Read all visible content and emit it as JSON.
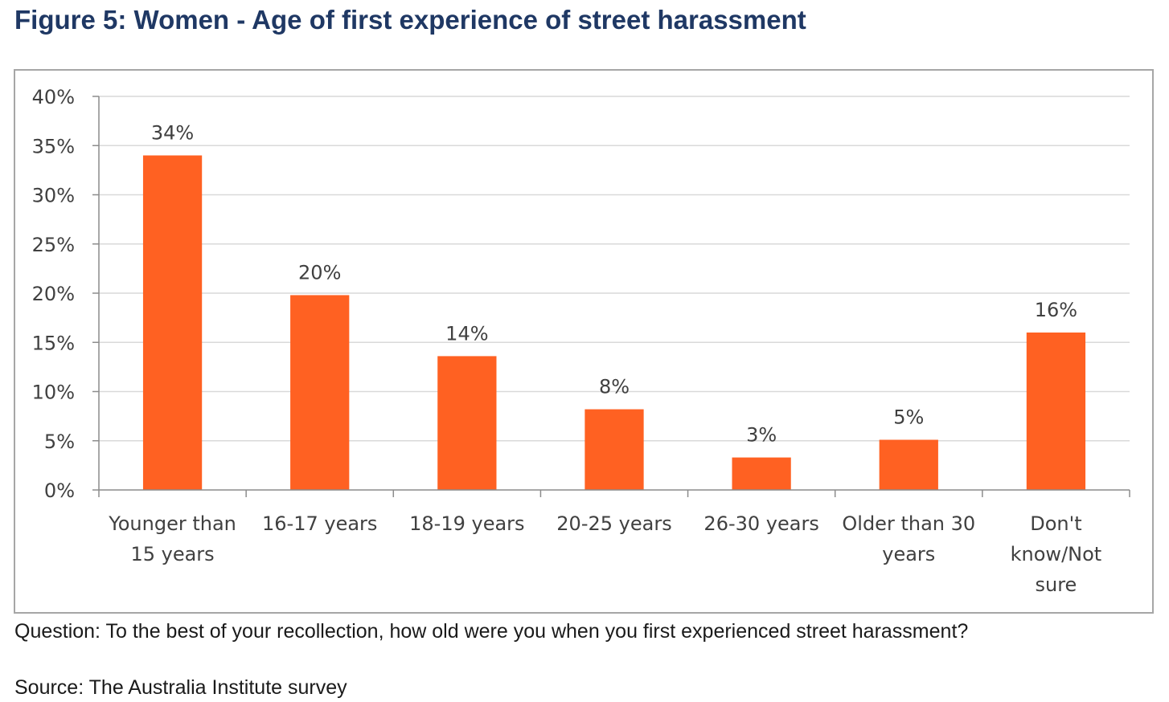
{
  "figure": {
    "title": "Figure 5: Women - Age of first experience of street harassment",
    "question": "Question: To the best of your recollection, how old were you when you first experienced street harassment?",
    "source": "Source: The Australia Institute survey"
  },
  "chart_data": {
    "type": "bar",
    "title": "",
    "xlabel": "",
    "ylabel": "",
    "categories": [
      [
        "Younger than",
        "15 years"
      ],
      [
        "16-17 years"
      ],
      [
        "18-19 years"
      ],
      [
        "20-25 years"
      ],
      [
        "26-30 years"
      ],
      [
        "Older than 30",
        "years"
      ],
      [
        "Don't",
        "know/Not",
        "sure"
      ]
    ],
    "values": [
      34,
      19.8,
      13.6,
      8.2,
      3.3,
      5.1,
      16
    ],
    "data_labels": [
      "34%",
      "20%",
      "14%",
      "8%",
      "3%",
      "5%",
      "16%"
    ],
    "ylim": [
      0,
      40
    ],
    "yticks": [
      0,
      5,
      10,
      15,
      20,
      25,
      30,
      35,
      40
    ],
    "ytick_labels": [
      "0%",
      "5%",
      "10%",
      "15%",
      "20%",
      "25%",
      "30%",
      "35%",
      "40%"
    ],
    "grid": true,
    "legend": "none",
    "colors": {
      "bar": "#ff6122",
      "grid": "#d9d9d9",
      "axis": "#8c8c8c",
      "title": "#1f3864"
    }
  }
}
